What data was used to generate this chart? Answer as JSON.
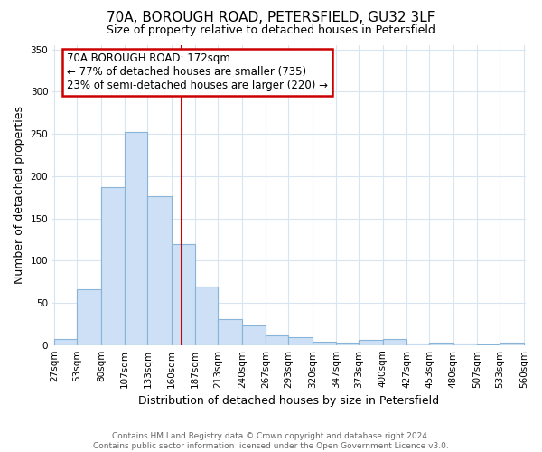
{
  "title": "70A, BOROUGH ROAD, PETERSFIELD, GU32 3LF",
  "subtitle": "Size of property relative to detached houses in Petersfield",
  "xlabel": "Distribution of detached houses by size in Petersfield",
  "ylabel": "Number of detached properties",
  "bin_labels": [
    "27sqm",
    "53sqm",
    "80sqm",
    "107sqm",
    "133sqm",
    "160sqm",
    "187sqm",
    "213sqm",
    "240sqm",
    "267sqm",
    "293sqm",
    "320sqm",
    "347sqm",
    "373sqm",
    "400sqm",
    "427sqm",
    "453sqm",
    "480sqm",
    "507sqm",
    "533sqm",
    "560sqm"
  ],
  "bar_heights": [
    7,
    66,
    187,
    252,
    176,
    119,
    69,
    31,
    23,
    11,
    9,
    4,
    3,
    6,
    7,
    2,
    3,
    2,
    1,
    3
  ],
  "bar_color": "#cde0f5",
  "bar_edge_color": "#89b4d9",
  "vline_color": "#cc0000",
  "ylim": [
    0,
    355
  ],
  "yticks": [
    0,
    50,
    100,
    150,
    200,
    250,
    300,
    350
  ],
  "annotation_title": "70A BOROUGH ROAD: 172sqm",
  "annotation_line1": "← 77% of detached houses are smaller (735)",
  "annotation_line2": "23% of semi-detached houses are larger (220) →",
  "annotation_box_color": "#ffffff",
  "annotation_box_edge_color": "#cc0000",
  "footer_line1": "Contains HM Land Registry data © Crown copyright and database right 2024.",
  "footer_line2": "Contains public sector information licensed under the Open Government Licence v3.0.",
  "bin_edges": [
    27,
    53,
    80,
    107,
    133,
    160,
    187,
    213,
    240,
    267,
    293,
    320,
    347,
    373,
    400,
    427,
    453,
    480,
    507,
    533,
    560
  ],
  "grid_color": "#d8e4f0",
  "title_fontsize": 11,
  "subtitle_fontsize": 9,
  "ylabel_fontsize": 9,
  "xlabel_fontsize": 9,
  "tick_fontsize": 7.5,
  "footer_fontsize": 6.5,
  "ann_fontsize": 8.5
}
